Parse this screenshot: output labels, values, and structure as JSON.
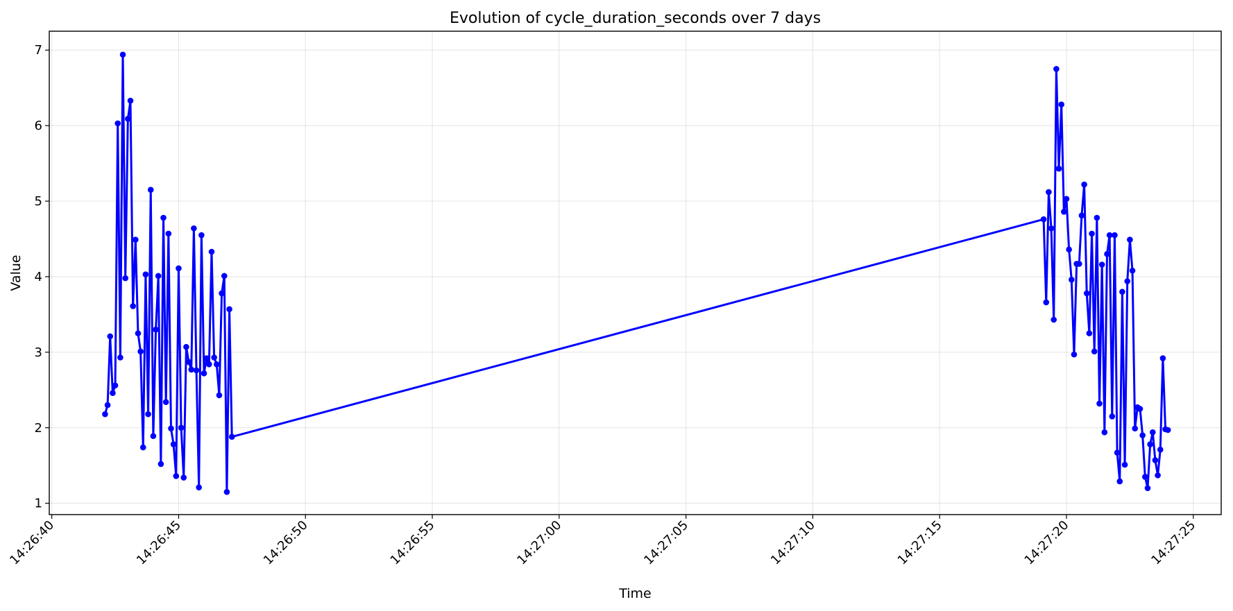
{
  "chart_data": {
    "type": "line",
    "title": "Evolution of cycle_duration_seconds over 7 days",
    "xlabel": "Time",
    "ylabel": "Value",
    "x_unit": "time of day (HH:MM:SS)",
    "xlim": [
      "14:26:39.9",
      "14:27:26.1"
    ],
    "ylim": [
      0.85,
      7.25
    ],
    "grid": true,
    "legend": "none",
    "colors": {
      "series": "#0000ff",
      "axes": "#000000",
      "grid": "#b0b0b0"
    },
    "x_ticks": [
      "14:26:40",
      "14:26:45",
      "14:26:50",
      "14:26:55",
      "14:27:00",
      "14:27:05",
      "14:27:10",
      "14:27:15",
      "14:27:20",
      "14:27:25"
    ],
    "y_ticks": [
      "1",
      "2",
      "3",
      "4",
      "5",
      "6",
      "7"
    ],
    "series": [
      {
        "marker": "circle",
        "points": [
          [
            "14:26:42.1",
            2.18
          ],
          [
            "14:26:42.2",
            2.3
          ],
          [
            "14:26:42.3",
            3.21
          ],
          [
            "14:26:42.4",
            2.46
          ],
          [
            "14:26:42.5",
            2.56
          ],
          [
            "14:26:42.6",
            6.03
          ],
          [
            "14:26:42.7",
            2.93
          ],
          [
            "14:26:42.8",
            6.94
          ],
          [
            "14:26:42.9",
            3.98
          ],
          [
            "14:26:43.0",
            6.09
          ],
          [
            "14:26:43.1",
            6.33
          ],
          [
            "14:26:43.2",
            3.61
          ],
          [
            "14:26:43.3",
            4.49
          ],
          [
            "14:26:43.4",
            3.25
          ],
          [
            "14:26:43.5",
            3.01
          ],
          [
            "14:26:43.6",
            1.74
          ],
          [
            "14:26:43.7",
            4.03
          ],
          [
            "14:26:43.8",
            2.18
          ],
          [
            "14:26:43.9",
            5.15
          ],
          [
            "14:26:44.0",
            1.89
          ],
          [
            "14:26:44.1",
            3.3
          ],
          [
            "14:26:44.2",
            4.01
          ],
          [
            "14:26:44.3",
            1.52
          ],
          [
            "14:26:44.4",
            4.78
          ],
          [
            "14:26:44.5",
            2.34
          ],
          [
            "14:26:44.6",
            4.57
          ],
          [
            "14:26:44.7",
            1.99
          ],
          [
            "14:26:44.8",
            1.78
          ],
          [
            "14:26:44.9",
            1.36
          ],
          [
            "14:26:45.0",
            4.11
          ],
          [
            "14:26:45.1",
            2.0
          ],
          [
            "14:26:45.2",
            1.34
          ],
          [
            "14:26:45.3",
            3.07
          ],
          [
            "14:26:45.4",
            2.87
          ],
          [
            "14:26:45.5",
            2.77
          ],
          [
            "14:26:45.6",
            4.64
          ],
          [
            "14:26:45.7",
            2.76
          ],
          [
            "14:26:45.8",
            1.21
          ],
          [
            "14:26:45.9",
            4.55
          ],
          [
            "14:26:46.0",
            2.72
          ],
          [
            "14:26:46.1",
            2.92
          ],
          [
            "14:26:46.2",
            2.84
          ],
          [
            "14:26:46.3",
            4.33
          ],
          [
            "14:26:46.4",
            2.93
          ],
          [
            "14:26:46.5",
            2.84
          ],
          [
            "14:26:46.6",
            2.43
          ],
          [
            "14:26:46.7",
            3.78
          ],
          [
            "14:26:46.8",
            4.01
          ],
          [
            "14:26:46.9",
            1.15
          ],
          [
            "14:26:47.0",
            3.57
          ],
          [
            "14:26:47.1",
            1.88
          ],
          [
            "14:27:19.1",
            4.76
          ],
          [
            "14:27:19.2",
            3.66
          ],
          [
            "14:27:19.3",
            5.12
          ],
          [
            "14:27:19.4",
            4.64
          ],
          [
            "14:27:19.5",
            3.43
          ],
          [
            "14:27:19.6",
            6.75
          ],
          [
            "14:27:19.7",
            5.43
          ],
          [
            "14:27:19.8",
            6.28
          ],
          [
            "14:27:19.9",
            4.86
          ],
          [
            "14:27:20.0",
            5.03
          ],
          [
            "14:27:20.1",
            4.36
          ],
          [
            "14:27:20.2",
            3.96
          ],
          [
            "14:27:20.3",
            2.97
          ],
          [
            "14:27:20.4",
            4.17
          ],
          [
            "14:27:20.5",
            4.17
          ],
          [
            "14:27:20.6",
            4.81
          ],
          [
            "14:27:20.7",
            5.22
          ],
          [
            "14:27:20.8",
            3.78
          ],
          [
            "14:27:20.9",
            3.25
          ],
          [
            "14:27:21.0",
            4.57
          ],
          [
            "14:27:21.1",
            3.01
          ],
          [
            "14:27:21.2",
            4.78
          ],
          [
            "14:27:21.3",
            2.32
          ],
          [
            "14:27:21.4",
            4.16
          ],
          [
            "14:27:21.5",
            1.94
          ],
          [
            "14:27:21.6",
            4.3
          ],
          [
            "14:27:21.7",
            4.55
          ],
          [
            "14:27:21.8",
            2.15
          ],
          [
            "14:27:21.9",
            4.55
          ],
          [
            "14:27:22.0",
            1.67
          ],
          [
            "14:27:22.1",
            1.29
          ],
          [
            "14:27:22.2",
            3.8
          ],
          [
            "14:27:22.3",
            1.51
          ],
          [
            "14:27:22.4",
            3.94
          ],
          [
            "14:27:22.5",
            4.49
          ],
          [
            "14:27:22.6",
            4.08
          ],
          [
            "14:27:22.7",
            1.99
          ],
          [
            "14:27:22.8",
            2.27
          ],
          [
            "14:27:22.9",
            2.25
          ],
          [
            "14:27:23.0",
            1.9
          ],
          [
            "14:27:23.1",
            1.35
          ],
          [
            "14:27:23.2",
            1.2
          ],
          [
            "14:27:23.3",
            1.78
          ],
          [
            "14:27:23.4",
            1.94
          ],
          [
            "14:27:23.5",
            1.57
          ],
          [
            "14:27:23.6",
            1.37
          ],
          [
            "14:27:23.7",
            1.71
          ],
          [
            "14:27:23.8",
            2.92
          ],
          [
            "14:27:23.9",
            1.98
          ],
          [
            "14:27:24.0",
            1.97
          ]
        ]
      }
    ]
  }
}
